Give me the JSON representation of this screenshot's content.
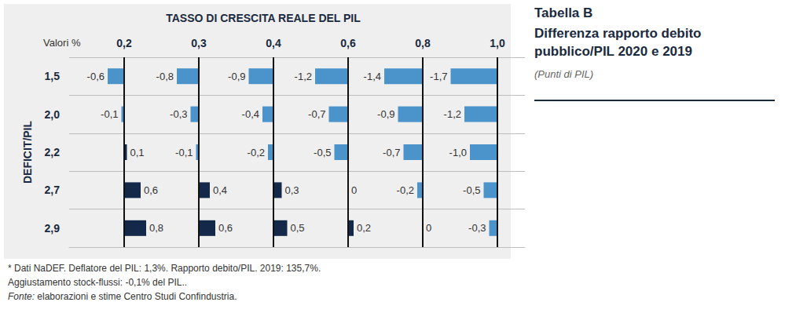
{
  "chart_data": {
    "type": "bar",
    "orientation": "horizontal",
    "title": "Tabella B",
    "subtitle": "Differenza rapporto debito pubblico/PIL 2020 e 2019",
    "unit_label": "(Punti di PIL)",
    "x_label": "TASSO DI CRESCITA REALE DEL PIL",
    "y_label": "DEFICIT/PIL",
    "corner_label": "Valori %",
    "notes": [
      "* Dati NaDEF. Deflatore del PIL: 1,3%. Rapporto debito/PIL. 2019: 135,7%.",
      "Aggiustamento stock-flussi: -0,1% del PIL..",
      "Fonte: elaborazioni e stime Centro Studi Confindustria."
    ],
    "categories": [
      "1,5",
      "2,0",
      "2,2",
      "2,7",
      "2,9"
    ],
    "series": [
      {
        "name": "0,2",
        "values": [
          -0.6,
          -0.1,
          0.1,
          0.6,
          0.8
        ],
        "value_labels": [
          "-0,6",
          "-0,1",
          "0,1",
          "0,6",
          "0,8"
        ],
        "colors": [
          "#4b93cb",
          "#4b93cb",
          "#14294a",
          "#14294a",
          "#14294a"
        ]
      },
      {
        "name": "0,3",
        "values": [
          -0.8,
          -0.3,
          -0.1,
          0.4,
          0.6
        ],
        "value_labels": [
          "-0,8",
          "-0,3",
          "-0,1",
          "0,4",
          "0,6"
        ],
        "colors": [
          "#4b93cb",
          "#4b93cb",
          "#4b93cb",
          "#14294a",
          "#14294a"
        ]
      },
      {
        "name": "0,4",
        "values": [
          -0.9,
          -0.4,
          -0.2,
          0.3,
          0.5
        ],
        "value_labels": [
          "-0,9",
          "-0,4",
          "-0,2",
          "0,3",
          "0,5"
        ],
        "colors": [
          "#4b93cb",
          "#4b93cb",
          "#4b93cb",
          "#14294a",
          "#14294a"
        ]
      },
      {
        "name": "0,6",
        "values": [
          -1.2,
          -0.7,
          -0.5,
          0,
          0.2
        ],
        "value_labels": [
          "-1,2",
          "-0,7",
          "-0,5",
          "0",
          "0,2"
        ],
        "colors": [
          "#4b93cb",
          "#4b93cb",
          "#4b93cb",
          "#14294a",
          "#14294a"
        ]
      },
      {
        "name": "0,8",
        "values": [
          -1.4,
          -0.9,
          -0.7,
          -0.2,
          0
        ],
        "value_labels": [
          "-1,4",
          "-0,9",
          "-0,7",
          "-0,2",
          "0"
        ],
        "colors": [
          "#4b93cb",
          "#4b93cb",
          "#4b93cb",
          "#4b93cb",
          "#14294a"
        ]
      },
      {
        "name": "1,0",
        "values": [
          -1.7,
          -1.2,
          -1.0,
          -0.5,
          -0.3
        ],
        "value_labels": [
          "-1,7",
          "-1,2",
          "-1,0",
          "-0,5",
          "-0,3"
        ],
        "colors": [
          "#4b93cb",
          "#4b93cb",
          "#4b93cb",
          "#4b93cb",
          "#4b93cb"
        ]
      }
    ],
    "xlim": [
      -2,
      1
    ],
    "xticks": [
      0
    ],
    "grid": true,
    "data_labels": true,
    "tick_labels": "y"
  }
}
